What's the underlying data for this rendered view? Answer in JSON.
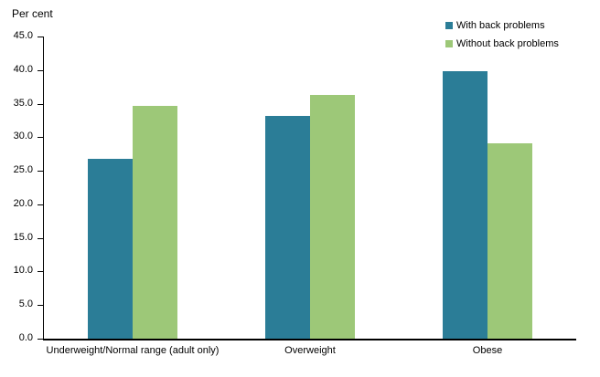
{
  "chart_data": {
    "type": "bar",
    "title": "",
    "ylabel": "Per cent",
    "xlabel": "",
    "categories": [
      "Underweight/Normal range (adult only)",
      "Overweight",
      "Obese"
    ],
    "series": [
      {
        "name": "With back problems",
        "color": "#2B7D97",
        "values": [
          26.8,
          33.2,
          39.8
        ]
      },
      {
        "name": "Without back problems",
        "color": "#9DC878",
        "values": [
          34.7,
          36.3,
          29.1
        ]
      }
    ],
    "ylim": [
      0,
      45
    ],
    "ytick_step": 5,
    "ytick_decimals": 1,
    "grid": false,
    "legend_position": "top-right",
    "axis_color": "#000000",
    "text_color": "#000000",
    "background_color": "#ffffff"
  }
}
